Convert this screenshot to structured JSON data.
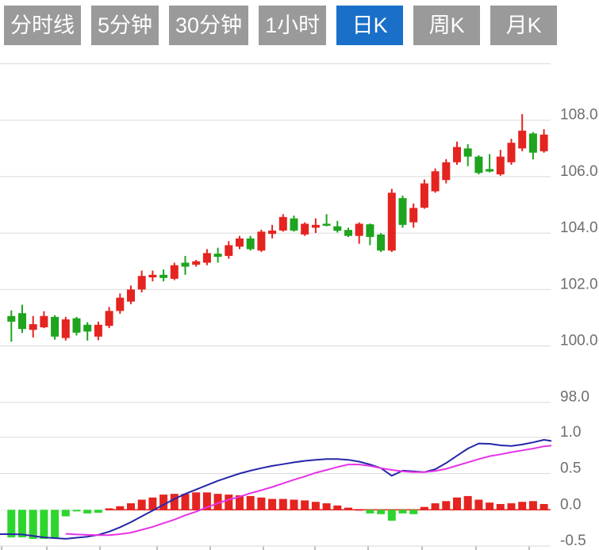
{
  "toolbar": {
    "buttons": [
      {
        "id": "minute-line",
        "label": "分时线",
        "active": false
      },
      {
        "id": "5min",
        "label": "5分钟",
        "active": false
      },
      {
        "id": "30min",
        "label": "30分钟",
        "active": false
      },
      {
        "id": "1hour",
        "label": "1小时",
        "active": false
      },
      {
        "id": "daily-k",
        "label": "日K",
        "active": true
      },
      {
        "id": "weekly-k",
        "label": "周K",
        "active": false
      },
      {
        "id": "monthly-k",
        "label": "月K",
        "active": false
      }
    ],
    "colors": {
      "button_bg": "#9a9a9a",
      "button_text": "#ffffff",
      "active_bg": "#1a70c8"
    }
  },
  "chart_data": [
    {
      "type": "candlestick",
      "panel": "price",
      "title": "",
      "up_color": "#e42420",
      "down_color": "#1ea41e",
      "grid": true,
      "legend_position": "none",
      "y_axis": {
        "side": "right",
        "tick_labels": [
          "108.0",
          "106.0",
          "104.0",
          "102.0",
          "100.0",
          "98.0"
        ],
        "tick_values": [
          108,
          106,
          104,
          102,
          100,
          98
        ],
        "range": [
          97.1,
          110.0
        ]
      },
      "x_axis": {
        "tick_labels": [],
        "candle_count": 50
      },
      "candles_ohlc": [
        [
          101.06,
          101.26,
          100.15,
          100.86
        ],
        [
          101.16,
          101.46,
          100.46,
          100.6
        ],
        [
          100.57,
          101.06,
          100.3,
          100.77
        ],
        [
          100.66,
          101.23,
          100.63,
          101.06
        ],
        [
          101.03,
          101.09,
          100.22,
          100.33
        ],
        [
          100.28,
          101.03,
          100.19,
          100.94
        ],
        [
          100.98,
          101.03,
          100.37,
          100.47
        ],
        [
          100.75,
          100.84,
          100.19,
          100.51
        ],
        [
          100.33,
          100.86,
          100.2,
          100.75
        ],
        [
          100.71,
          101.38,
          100.63,
          101.24
        ],
        [
          101.24,
          101.86,
          101.14,
          101.71
        ],
        [
          101.57,
          102.14,
          101.48,
          102.0
        ],
        [
          102.0,
          102.67,
          101.9,
          102.48
        ],
        [
          102.43,
          102.67,
          102.29,
          102.52
        ],
        [
          102.52,
          102.71,
          102.29,
          102.41
        ],
        [
          102.38,
          102.95,
          102.33,
          102.86
        ],
        [
          102.95,
          103.19,
          102.52,
          102.81
        ],
        [
          102.88,
          103.05,
          102.81,
          103.0
        ],
        [
          102.95,
          103.43,
          102.86,
          103.29
        ],
        [
          103.27,
          103.48,
          102.95,
          103.16
        ],
        [
          103.19,
          103.71,
          103.09,
          103.57
        ],
        [
          103.52,
          103.9,
          103.43,
          103.81
        ],
        [
          103.81,
          103.9,
          103.38,
          103.43
        ],
        [
          103.38,
          104.12,
          103.33,
          104.05
        ],
        [
          103.97,
          104.29,
          103.81,
          104.09
        ],
        [
          104.09,
          104.67,
          104.05,
          104.57
        ],
        [
          104.52,
          104.62,
          104.05,
          104.09
        ],
        [
          103.95,
          104.38,
          103.9,
          104.33
        ],
        [
          104.19,
          104.52,
          104.0,
          104.29
        ],
        [
          104.33,
          104.67,
          104.24,
          104.26
        ],
        [
          104.24,
          104.43,
          104.02,
          104.08
        ],
        [
          104.11,
          104.19,
          103.86,
          103.9
        ],
        [
          103.9,
          104.38,
          103.62,
          104.33
        ],
        [
          104.31,
          104.34,
          103.57,
          103.86
        ],
        [
          103.95,
          104.0,
          103.33,
          103.38
        ],
        [
          103.38,
          105.57,
          103.33,
          105.43
        ],
        [
          105.24,
          105.33,
          104.19,
          104.29
        ],
        [
          104.38,
          105.05,
          104.19,
          104.89
        ],
        [
          104.9,
          105.9,
          104.86,
          105.76
        ],
        [
          105.48,
          106.29,
          105.43,
          106.19
        ],
        [
          105.88,
          106.62,
          105.76,
          106.51
        ],
        [
          106.51,
          107.24,
          106.42,
          107.05
        ],
        [
          107.0,
          107.15,
          106.37,
          106.71
        ],
        [
          106.71,
          106.76,
          106.08,
          106.13
        ],
        [
          106.27,
          106.8,
          106.15,
          106.18
        ],
        [
          106.08,
          106.95,
          106.03,
          106.71
        ],
        [
          106.51,
          107.34,
          106.42,
          107.2
        ],
        [
          107.0,
          108.22,
          106.9,
          107.63
        ],
        [
          107.53,
          107.58,
          106.61,
          106.85
        ],
        [
          106.9,
          107.68,
          106.85,
          107.49
        ]
      ]
    },
    {
      "type": "bar",
      "subtype": "macd-indicator",
      "panel": "indicator",
      "grid": true,
      "y_axis": {
        "side": "right",
        "tick_labels": [
          "1.0",
          "0.5",
          "0.0",
          "-0.5"
        ],
        "tick_values": [
          1.0,
          0.5,
          0.0,
          -0.5
        ],
        "range": [
          -0.55,
          1.05
        ]
      },
      "zero_baseline_color": "#e42420",
      "histogram": {
        "positive_color": "#e42420",
        "negative_color": "#2ed52e",
        "values": [
          -0.38,
          -0.38,
          -0.4,
          -0.4,
          -0.39,
          -0.09,
          -0.02,
          -0.05,
          -0.04,
          0.02,
          0.05,
          0.09,
          0.14,
          0.17,
          0.21,
          0.22,
          0.22,
          0.24,
          0.24,
          0.22,
          0.21,
          0.2,
          0.19,
          0.17,
          0.15,
          0.15,
          0.14,
          0.13,
          0.11,
          0.09,
          0.06,
          0.03,
          0.01,
          -0.05,
          -0.06,
          -0.15,
          -0.05,
          -0.06,
          0.04,
          0.09,
          0.12,
          0.17,
          0.19,
          0.14,
          0.1,
          0.08,
          0.09,
          0.11,
          0.12,
          0.08
        ]
      },
      "series": [
        {
          "name": "DIF",
          "color": "#2626a8",
          "start_index": 0,
          "values": [
            -0.335,
            -0.34,
            -0.36,
            -0.38,
            -0.39,
            -0.4,
            -0.385,
            -0.37,
            -0.345,
            -0.3,
            -0.24,
            -0.17,
            -0.09,
            -0.01,
            0.07,
            0.15,
            0.22,
            0.28,
            0.34,
            0.4,
            0.45,
            0.5,
            0.54,
            0.575,
            0.605,
            0.63,
            0.655,
            0.675,
            0.69,
            0.7,
            0.7,
            0.69,
            0.665,
            0.625,
            0.575,
            0.47,
            0.54,
            0.53,
            0.52,
            0.56,
            0.645,
            0.745,
            0.845,
            0.915,
            0.91,
            0.89,
            0.88,
            0.9,
            0.93,
            0.965
          ],
          "end_value": 0.95
        },
        {
          "name": "DEA",
          "color": "#e633e6",
          "start_index": 5,
          "values": [
            -0.33,
            -0.34,
            -0.345,
            -0.35,
            -0.35,
            -0.335,
            -0.315,
            -0.275,
            -0.235,
            -0.185,
            -0.135,
            -0.075,
            -0.025,
            0.035,
            0.09,
            0.14,
            0.18,
            0.23,
            0.27,
            0.315,
            0.365,
            0.415,
            0.46,
            0.51,
            0.55,
            0.59,
            0.625,
            0.625,
            0.605,
            0.575,
            0.55,
            0.53,
            0.52,
            0.52,
            0.535,
            0.565,
            0.61,
            0.655,
            0.7,
            0.74,
            0.765,
            0.795,
            0.82,
            0.845,
            0.875
          ],
          "end_value": 0.885
        }
      ]
    }
  ],
  "chart_style": {
    "background": "#ffffff",
    "gridline_color": "#dadada",
    "zero_gridline_color": "#ececec",
    "axis_label_color": "#6e6e6e",
    "bottom_tick_color": "#aaaaaa"
  }
}
